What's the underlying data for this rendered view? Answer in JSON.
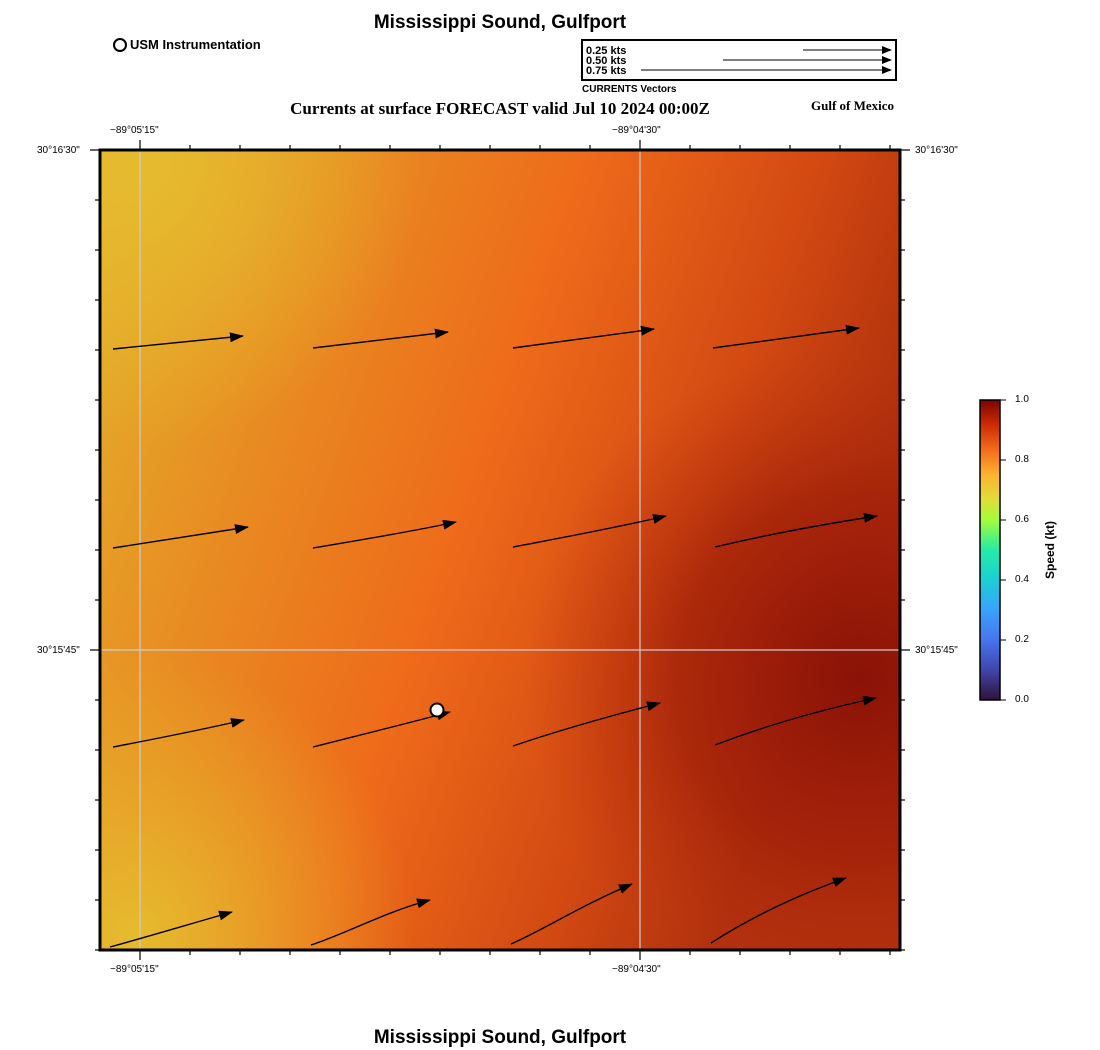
{
  "map": {
    "title": "Mississippi Sound, Gulfport",
    "footer_title": "Mississippi Sound, Gulfport",
    "subtitle": "Currents at surface FORECAST valid Jul 10 2024 00:00Z",
    "region_label": "Gulf of Mexico"
  },
  "legend": {
    "station_label": "USM Instrumentation",
    "vector_rows": [
      "0.25 kts",
      "0.50 kts",
      "0.75 kts"
    ],
    "vector_caption": "CURRENTS Vectors"
  },
  "axes": {
    "top_lon_labels": [
      "−89°05'15\"",
      "−89°04'30\""
    ],
    "bottom_lon_labels": [
      "−89°05'15\"",
      "−89°04'30\""
    ],
    "left_lat_labels": [
      "30°16'30\"",
      "30°15'45\""
    ],
    "right_lat_labels": [
      "30°16'30\"",
      "30°15'45\""
    ]
  },
  "colorbar": {
    "label": "Speed (kt)",
    "ticks": [
      "1.0",
      "0.8",
      "0.6",
      "0.4",
      "0.2",
      "0.0"
    ],
    "min": 0.0,
    "max": 1.0
  },
  "colors": {
    "field_low": "#e3b22c",
    "field_mid": "#ee6a1a",
    "field_high": "#8f1508",
    "grid": "#cccccc"
  }
}
